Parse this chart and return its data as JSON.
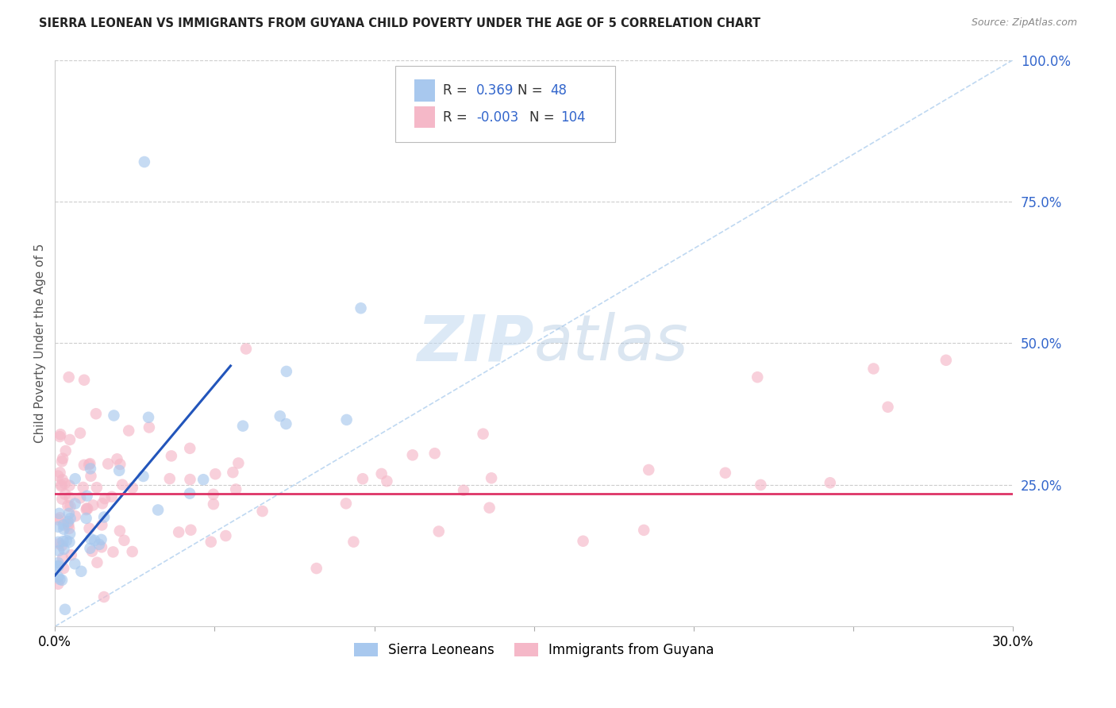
{
  "title": "SIERRA LEONEAN VS IMMIGRANTS FROM GUYANA CHILD POVERTY UNDER THE AGE OF 5 CORRELATION CHART",
  "source": "Source: ZipAtlas.com",
  "ylabel": "Child Poverty Under the Age of 5",
  "watermark": "ZIPatlas",
  "xlim": [
    0,
    0.3
  ],
  "ylim": [
    0,
    1.0
  ],
  "xticks": [
    0.0,
    0.05,
    0.1,
    0.15,
    0.2,
    0.25,
    0.3
  ],
  "xtick_labels": [
    "0.0%",
    "",
    "",
    "",
    "",
    "",
    "30.0%"
  ],
  "yticks_right": [
    0.0,
    0.25,
    0.5,
    0.75,
    1.0
  ],
  "ytick_labels_right": [
    "",
    "25.0%",
    "50.0%",
    "75.0%",
    "100.0%"
  ],
  "legend_R1": "0.369",
  "legend_N1": "48",
  "legend_R2": "-0.003",
  "legend_N2": "104",
  "sierra_color": "#a8c8ee",
  "guyana_color": "#f5b8c8",
  "sierra_line_color": "#2255bb",
  "guyana_line_color": "#dd3366",
  "diagonal_color": "#b8d4f0",
  "grid_color": "#cccccc",
  "background_color": "#ffffff",
  "sierra_line_x0": 0.0,
  "sierra_line_y0": 0.09,
  "sierra_line_x1": 0.055,
  "sierra_line_y1": 0.46,
  "guyana_line_y": 0.235,
  "scatter_s": 110,
  "scatter_alpha": 0.65
}
